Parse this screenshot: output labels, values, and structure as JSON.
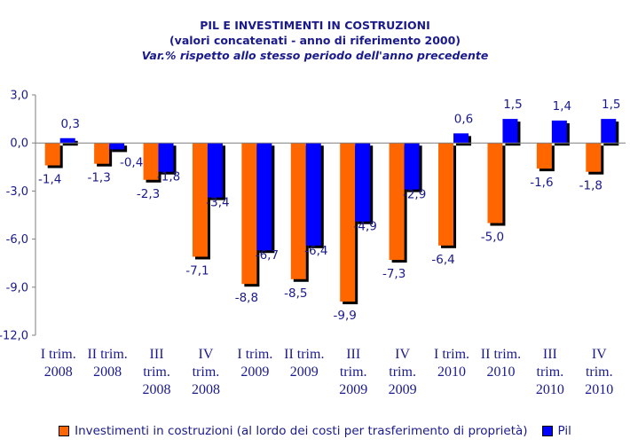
{
  "chart_data": {
    "type": "bar",
    "title": "PIL E INVESTIMENTI IN COSTRUZIONI",
    "subtitle": "(valori concatenati - anno di riferimento 2000)",
    "subtitle2": "Var.% rispetto allo stesso periodo dell'anno precedente",
    "categories": [
      [
        "I trim.",
        "2008"
      ],
      [
        "II trim.",
        "2008"
      ],
      [
        "III",
        "trim.",
        "2008"
      ],
      [
        "IV",
        "trim.",
        "2008"
      ],
      [
        "I trim.",
        "2009"
      ],
      [
        "II trim.",
        "2009"
      ],
      [
        "III",
        "trim.",
        "2009"
      ],
      [
        "IV",
        "trim.",
        "2009"
      ],
      [
        "I trim.",
        "2010"
      ],
      [
        "II trim.",
        "2010"
      ],
      [
        "III",
        "trim.",
        "2010"
      ],
      [
        "IV",
        "trim.",
        "2010"
      ]
    ],
    "series": [
      {
        "name": "Investimenti in costruzioni (al lordo dei costi per trasferimento di proprietà)",
        "color": "#ff6600",
        "values": [
          -1.4,
          -1.3,
          -2.3,
          -7.1,
          -8.8,
          -8.5,
          -9.9,
          -7.3,
          -6.4,
          -5.0,
          -1.6,
          -1.8
        ],
        "labels": [
          "-1,4",
          "-1,3",
          "-2,3",
          "-7,1",
          "-8,8",
          "-8,5",
          "-9,9",
          "-7,3",
          "-6,4",
          "-5,0",
          "-1,6",
          "-1,8"
        ]
      },
      {
        "name": "Pil",
        "color": "#0000ff",
        "values": [
          0.3,
          -0.4,
          -1.8,
          -3.4,
          -6.7,
          -6.4,
          -4.9,
          -2.9,
          0.6,
          1.5,
          1.4,
          1.5
        ],
        "labels": [
          "0,3",
          "-0,4",
          "-1,8",
          "-3,4",
          "-6,7",
          "-6,4",
          "-4,9",
          "-2,9",
          "0,6",
          "1,5",
          "1,4",
          "1,5"
        ]
      }
    ],
    "yticks": [
      3.0,
      0.0,
      -3.0,
      -6.0,
      -9.0,
      -12.0
    ],
    "ytick_labels": [
      "3,0",
      "0,0",
      "-3,0",
      "-6,0",
      "-9,0",
      "-12,0"
    ],
    "ylim": [
      -12,
      3
    ],
    "xlabel": "",
    "ylabel": "",
    "legend_position": "bottom"
  }
}
